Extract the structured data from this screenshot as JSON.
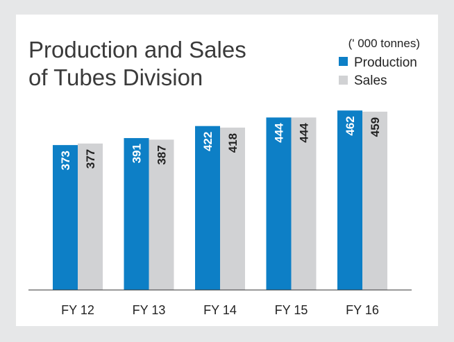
{
  "chart_data": {
    "type": "bar",
    "title_line1": "Production  and  Sales",
    "title_line2": "of  Tubes Division",
    "unit": "(' 000 tonnes)",
    "categories": [
      "FY 12",
      "FY 13",
      "FY 14",
      "FY 15",
      "FY 16"
    ],
    "series": [
      {
        "name": "Production",
        "color": "#0d7fc6",
        "values": [
          373,
          391,
          422,
          444,
          462
        ]
      },
      {
        "name": "Sales",
        "color": "#d1d2d4",
        "values": [
          377,
          387,
          418,
          444,
          459
        ]
      }
    ],
    "ylim": [
      0,
      500
    ],
    "grid": false,
    "legend": "top-right"
  }
}
